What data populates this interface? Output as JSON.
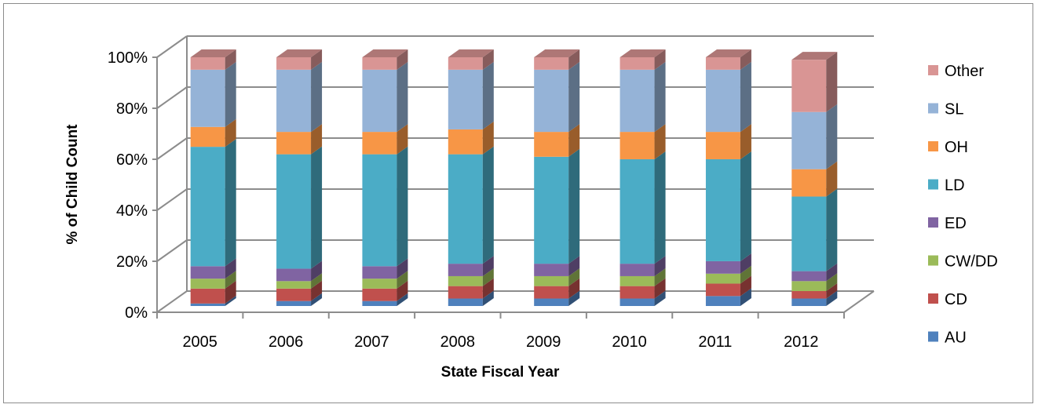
{
  "chart_data": {
    "type": "bar",
    "stacked": true,
    "style": "3d-stacked-percent-column",
    "categories": [
      "2005",
      "2006",
      "2007",
      "2008",
      "2009",
      "2010",
      "2011",
      "2012"
    ],
    "series": [
      {
        "name": "AU",
        "color": "#4f81bd",
        "values": [
          1,
          2,
          2,
          3,
          3,
          3,
          4,
          3
        ]
      },
      {
        "name": "CD",
        "color": "#c0504d",
        "values": [
          6,
          5,
          5,
          5,
          5,
          5,
          5,
          3
        ]
      },
      {
        "name": "CW/DD",
        "color": "#9bbb59",
        "values": [
          4,
          3,
          4,
          4,
          4,
          4,
          4,
          4
        ]
      },
      {
        "name": "ED",
        "color": "#8064a2",
        "values": [
          5,
          5,
          5,
          5,
          5,
          5,
          5,
          4
        ]
      },
      {
        "name": "LD",
        "color": "#4bacc6",
        "values": [
          48,
          46,
          45,
          44,
          43,
          42,
          41,
          30
        ]
      },
      {
        "name": "OH",
        "color": "#f79646",
        "values": [
          8,
          9,
          9,
          10,
          10,
          11,
          11,
          11
        ]
      },
      {
        "name": "SL",
        "color": "#95b3d7",
        "values": [
          23,
          25,
          25,
          24,
          25,
          25,
          25,
          23
        ]
      },
      {
        "name": "Other",
        "color": "#d99594",
        "values": [
          5,
          5,
          5,
          5,
          5,
          5,
          5,
          21
        ]
      }
    ],
    "xlabel": "State Fiscal Year",
    "ylabel": "% of Child Count",
    "ylim": [
      0,
      100
    ],
    "yticks": [
      "0%",
      "20%",
      "40%",
      "60%",
      "80%",
      "100%"
    ],
    "grid": true,
    "legend_position": "right"
  }
}
